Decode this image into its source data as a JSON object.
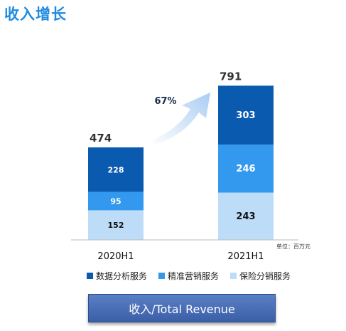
{
  "page": {
    "title": "收入增长",
    "button_label": "收入/Total Revenue"
  },
  "colors": {
    "dark": "#0a5aaf",
    "mid": "#3399ee",
    "light": "#bcdcf8",
    "arrow": "#cfe3f8",
    "title": "#1f8be0"
  },
  "chart_data": {
    "type": "bar",
    "stacked": true,
    "categories": [
      "2020H1",
      "2021H1"
    ],
    "series": [
      {
        "name": "保险分销服务",
        "values": [
          152,
          243
        ],
        "color": "#bcdcf8"
      },
      {
        "name": "精准营销服务",
        "values": [
          95,
          246
        ],
        "color": "#3399ee"
      },
      {
        "name": "数据分析服务",
        "values": [
          228,
          303
        ],
        "color": "#0a5aaf"
      }
    ],
    "totals": [
      "474",
      "791"
    ],
    "growth_label": "67%",
    "unit_label": "单位：百万元",
    "legend_order": [
      2,
      1,
      0
    ],
    "legend": "bottom",
    "ylim": [
      0,
      800
    ],
    "grid": false
  }
}
